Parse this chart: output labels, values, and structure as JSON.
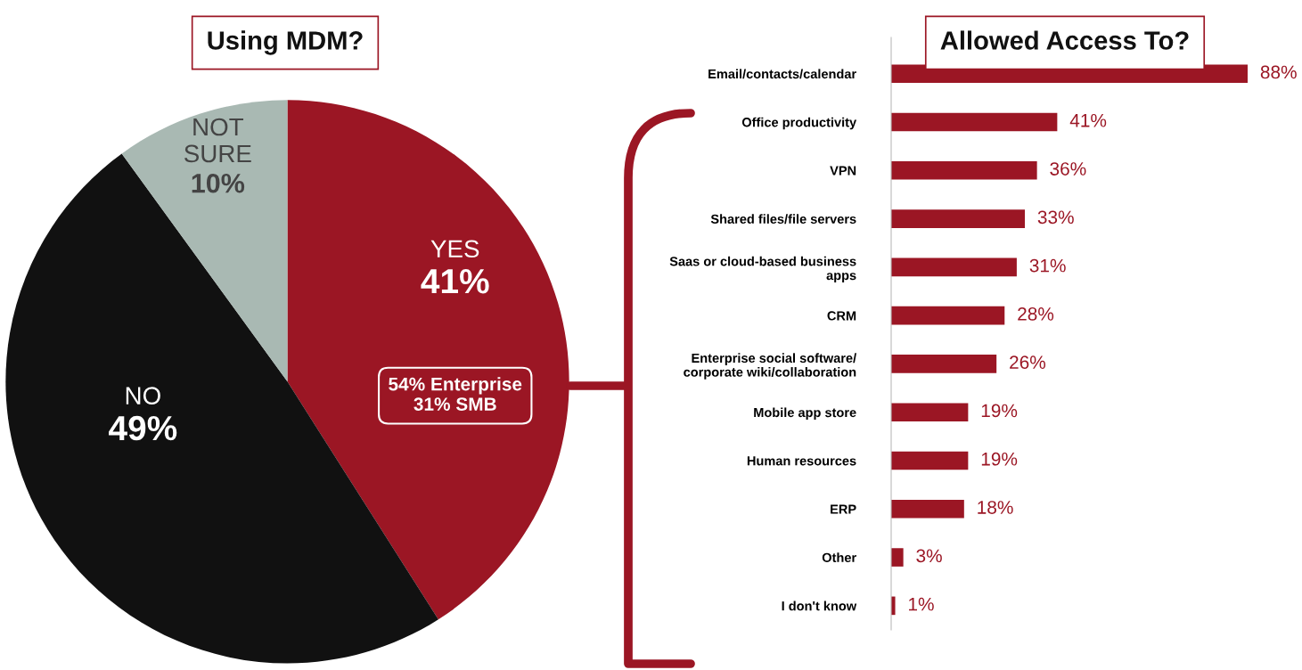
{
  "chart_data": [
    {
      "type": "pie",
      "title": "Using MDM?",
      "categories": [
        "YES",
        "NO",
        "NOT SURE"
      ],
      "values": [
        41,
        49,
        10
      ],
      "value_labels": [
        "41%",
        "49%",
        "10%"
      ],
      "colors": [
        "#9b1624",
        "#111111",
        "#a9b9b3"
      ],
      "annotations": [
        "54% Enterprise\n31% SMB"
      ]
    },
    {
      "type": "bar",
      "orientation": "horizontal",
      "title": "Allowed Access To?",
      "categories": [
        "Email/contacts/calendar",
        "Office productivity",
        "VPN",
        "Shared files/file servers",
        "Saas or cloud-based business\napps",
        "CRM",
        "Enterprise social software/\ncorporate wiki/collaboration",
        "Mobile app store",
        "Human resources",
        "ERP",
        "Other",
        "I don't know"
      ],
      "values": [
        88,
        41,
        36,
        33,
        31,
        28,
        26,
        19,
        19,
        18,
        3,
        1
      ],
      "value_labels": [
        "88%",
        "41%",
        "36%",
        "33%",
        "31%",
        "28%",
        "26%",
        "19%",
        "19%",
        "18%",
        "3%",
        "1%"
      ],
      "color": "#9b1624"
    }
  ]
}
